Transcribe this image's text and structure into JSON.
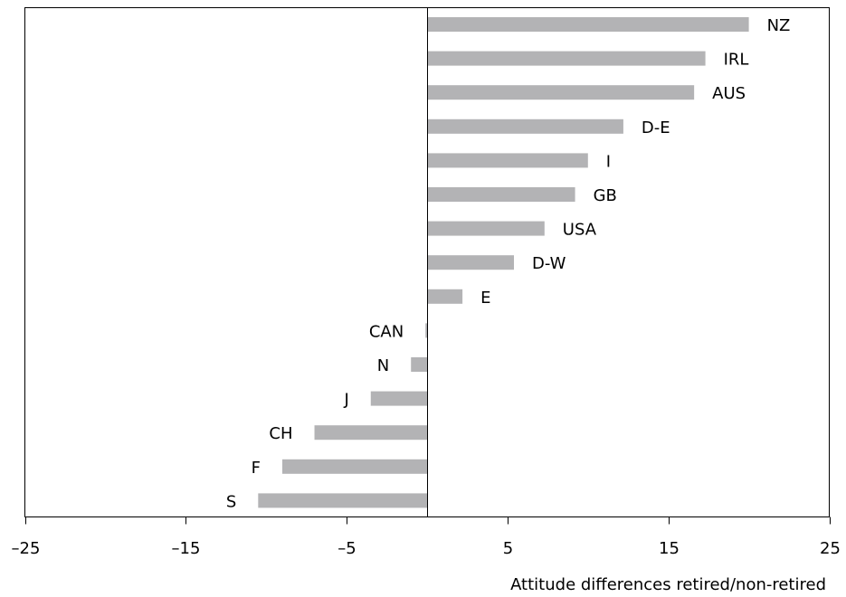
{
  "chart_data": {
    "type": "bar",
    "orientation": "horizontal",
    "categories": [
      "NZ",
      "IRL",
      "AUS",
      "D-E",
      "I",
      "GB",
      "USA",
      "D-W",
      "E",
      "CAN",
      "N",
      "J",
      "CH",
      "F",
      "S"
    ],
    "values": [
      20,
      17.3,
      16.6,
      12.2,
      10.0,
      9.2,
      7.3,
      5.4,
      2.2,
      -0.1,
      -1.0,
      -3.5,
      -7.0,
      -9.0,
      -10.5
    ],
    "title": "",
    "xlabel": "Attitude differences retired/non-retired",
    "ylabel": "",
    "xlim": [
      -25,
      25
    ],
    "xticks": [
      -25,
      -15,
      -5,
      5,
      15,
      25
    ],
    "xtick_labels": [
      "–25",
      "–15",
      "–5",
      "5",
      "15",
      "25"
    ],
    "grid": false,
    "legend": "none",
    "bar_color": "#b3b3b5"
  }
}
